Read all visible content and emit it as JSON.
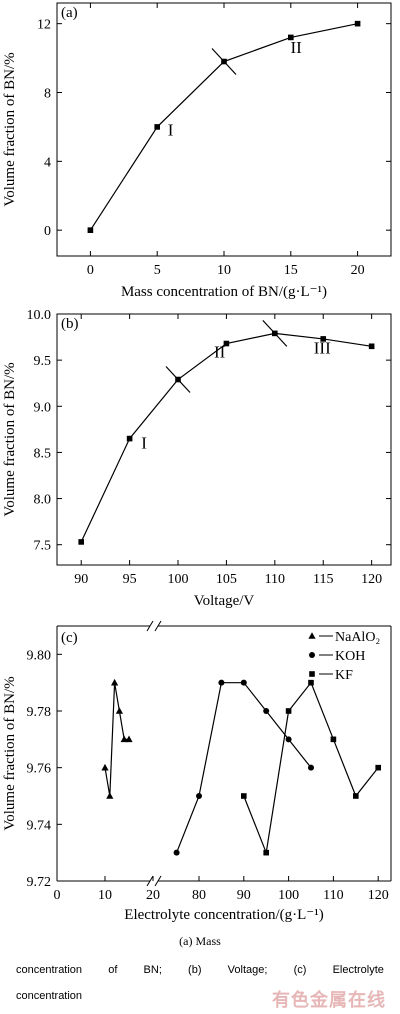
{
  "chart_data": [
    {
      "type": "line",
      "panel": "(a)",
      "xlabel": "Mass concentration of BN/(g·L⁻¹)",
      "ylabel": "Volume fraction of BN/%",
      "xlim": [
        -2.5,
        22.5
      ],
      "ylim": [
        -1.5,
        13.2
      ],
      "xticks": [
        0,
        5,
        10,
        15,
        20
      ],
      "yticks": [
        0,
        4,
        8,
        12
      ],
      "series": [
        {
          "x": [
            0,
            5,
            10,
            15,
            20
          ],
          "y": [
            0,
            6.0,
            9.8,
            11.2,
            12.0
          ],
          "marker": "square"
        }
      ],
      "annotations": [
        {
          "text": "I",
          "x": 6,
          "y": 5.5
        },
        {
          "text": "II",
          "x": 15.4,
          "y": 10.3
        }
      ],
      "dividers": [
        {
          "x": 10,
          "y": 9.8
        }
      ]
    },
    {
      "type": "line",
      "panel": "(b)",
      "xlabel": "Voltage/V",
      "ylabel": "Volume fraction of BN/%",
      "xlim": [
        87.5,
        122.0
      ],
      "ylim": [
        7.28,
        10.0
      ],
      "xticks": [
        90,
        95,
        100,
        105,
        110,
        115,
        120
      ],
      "yticks": [
        7.5,
        8.0,
        8.5,
        9.0,
        9.5,
        10.0
      ],
      "ytick_labels": [
        "7.5",
        "8.0",
        "8.5",
        "9.0",
        "9.5",
        "10.0"
      ],
      "series": [
        {
          "x": [
            90,
            95,
            100,
            105,
            110,
            115,
            120
          ],
          "y": [
            7.53,
            8.65,
            9.29,
            9.68,
            9.79,
            9.73,
            9.65
          ],
          "marker": "square"
        }
      ],
      "annotations": [
        {
          "text": "I",
          "x": 96.5,
          "y": 8.54
        },
        {
          "text": "II",
          "x": 104.3,
          "y": 9.53
        },
        {
          "text": "III",
          "x": 114.9,
          "y": 9.57
        }
      ],
      "dividers": [
        {
          "x": 100,
          "y": 9.29
        },
        {
          "x": 110,
          "y": 9.79
        }
      ]
    },
    {
      "type": "line",
      "panel": "(c)",
      "xlabel": "Electrolyte concentration/(g·L⁻¹)",
      "ylabel": "Volume fraction of BN/%",
      "ylim": [
        9.72,
        9.81
      ],
      "yticks": [
        9.72,
        9.74,
        9.76,
        9.78,
        9.8
      ],
      "ytick_labels": [
        "9.72",
        "9.74",
        "9.76",
        "9.78",
        "9.80"
      ],
      "xticks_left": [
        0,
        10,
        20
      ],
      "xticks_right": [
        80,
        90,
        100,
        110,
        120
      ],
      "axis_break": true,
      "legend_position": "top-right",
      "series": [
        {
          "name": "NaAlO₂",
          "marker": "triangle",
          "segment": "left",
          "x": [
            10,
            11,
            12,
            13,
            14,
            15
          ],
          "y": [
            9.76,
            9.75,
            9.79,
            9.78,
            9.77,
            9.77
          ]
        },
        {
          "name": "KOH",
          "marker": "circle",
          "segment": "right",
          "x": [
            75,
            80,
            85,
            90,
            95,
            100,
            105
          ],
          "y": [
            9.73,
            9.75,
            9.79,
            9.79,
            9.78,
            9.77,
            9.76
          ]
        },
        {
          "name": "KF",
          "marker": "square",
          "segment": "right",
          "x": [
            90,
            95,
            100,
            105,
            110,
            115,
            120
          ],
          "y": [
            9.75,
            9.73,
            9.78,
            9.79,
            9.77,
            9.75,
            9.76
          ]
        }
      ]
    }
  ],
  "caption": {
    "line1": "(a)    Mass",
    "line2_parts": [
      "concentration",
      "of",
      "BN;",
      "(b)",
      "Voltage;",
      "(c)",
      "Electrolyte"
    ],
    "line3": "concentration"
  },
  "watermark": "有色金属在线"
}
